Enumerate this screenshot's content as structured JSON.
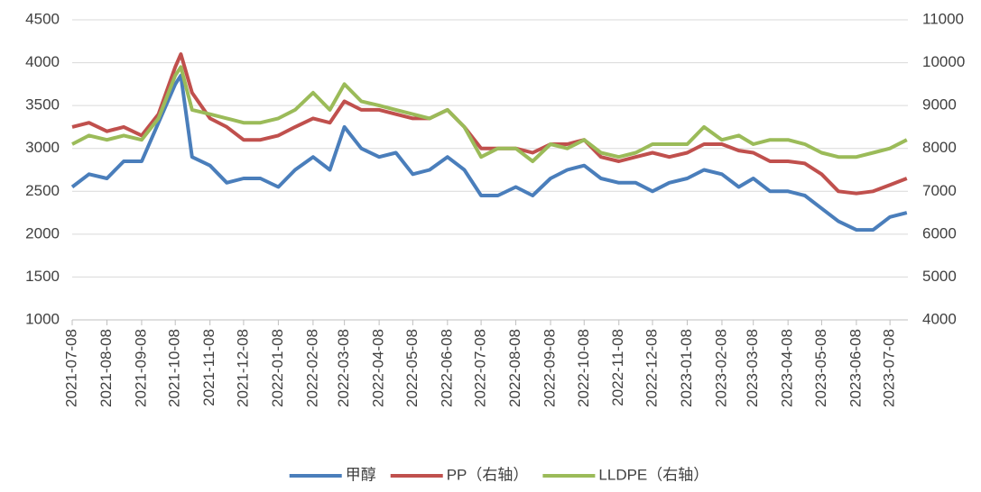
{
  "chart_data": {
    "type": "line",
    "x": [
      "2021-07-08",
      "2021-07-23",
      "2021-08-08",
      "2021-08-23",
      "2021-09-08",
      "2021-09-23",
      "2021-10-08",
      "2021-10-13",
      "2021-10-23",
      "2021-11-08",
      "2021-11-23",
      "2021-12-08",
      "2021-12-23",
      "2022-01-08",
      "2022-01-23",
      "2022-02-08",
      "2022-02-23",
      "2022-03-08",
      "2022-03-23",
      "2022-04-08",
      "2022-04-23",
      "2022-05-08",
      "2022-05-23",
      "2022-06-08",
      "2022-06-23",
      "2022-07-08",
      "2022-07-23",
      "2022-08-08",
      "2022-08-23",
      "2022-09-08",
      "2022-09-23",
      "2022-10-08",
      "2022-10-23",
      "2022-11-08",
      "2022-11-23",
      "2022-12-08",
      "2022-12-23",
      "2023-01-08",
      "2023-01-23",
      "2023-02-08",
      "2023-02-23",
      "2023-03-08",
      "2023-03-23",
      "2023-04-08",
      "2023-04-23",
      "2023-05-08",
      "2023-05-23",
      "2023-06-08",
      "2023-06-23",
      "2023-07-08",
      "2023-07-23"
    ],
    "series": [
      {
        "name": "甲醇",
        "color": "#4a7ebb",
        "axis": "y",
        "values": [
          2550,
          2700,
          2650,
          2850,
          2850,
          3300,
          3750,
          3850,
          2900,
          2800,
          2600,
          2650,
          2650,
          2550,
          2750,
          2900,
          2750,
          3250,
          3000,
          2900,
          2950,
          2700,
          2750,
          2900,
          2750,
          2450,
          2450,
          2550,
          2450,
          2650,
          2750,
          2800,
          2650,
          2600,
          2600,
          2500,
          2600,
          2650,
          2750,
          2700,
          2550,
          2650,
          2500,
          2500,
          2450,
          2300,
          2150,
          2050,
          2050,
          2200,
          2250
        ]
      },
      {
        "name": "PP（右轴）",
        "color": "#c0504d",
        "axis": "y2",
        "values": [
          8500,
          8600,
          8400,
          8500,
          8300,
          8800,
          9900,
          10200,
          9300,
          8700,
          8500,
          8200,
          8200,
          8300,
          8500,
          8700,
          8600,
          9100,
          8900,
          8900,
          8800,
          8700,
          8700,
          8900,
          8500,
          8000,
          8000,
          8000,
          7900,
          8100,
          8100,
          8200,
          7800,
          7700,
          7800,
          7900,
          7800,
          7900,
          8100,
          8100,
          7950,
          7900,
          7700,
          7700,
          7650,
          7400,
          7000,
          6950,
          7000,
          7150,
          7300
        ]
      },
      {
        "name": "LLDPE（右轴）",
        "color": "#9bbb59",
        "axis": "y2",
        "values": [
          8100,
          8300,
          8200,
          8300,
          8200,
          8700,
          9700,
          9900,
          8900,
          8800,
          8700,
          8600,
          8600,
          8700,
          8900,
          9300,
          8900,
          9500,
          9100,
          9000,
          8900,
          8800,
          8700,
          8900,
          8500,
          7800,
          8000,
          8000,
          7700,
          8100,
          8000,
          8200,
          7900,
          7800,
          7900,
          8100,
          8100,
          8100,
          8500,
          8200,
          8300,
          8100,
          8200,
          8200,
          8100,
          7900,
          7800,
          7800,
          7900,
          8000,
          8200
        ]
      }
    ],
    "xlim": [
      "2021-07-08",
      "2023-07-24"
    ],
    "xticks": [
      "2021-07-08",
      "2021-08-08",
      "2021-09-08",
      "2021-10-08",
      "2021-11-08",
      "2021-12-08",
      "2022-01-08",
      "2022-02-08",
      "2022-03-08",
      "2022-04-08",
      "2022-05-08",
      "2022-06-08",
      "2022-07-08",
      "2022-08-08",
      "2022-09-08",
      "2022-10-08",
      "2022-11-08",
      "2022-12-08",
      "2023-01-08",
      "2023-02-08",
      "2023-03-08",
      "2023-04-08",
      "2023-05-08",
      "2023-06-08",
      "2023-07-08"
    ],
    "ylim": [
      1000,
      4500
    ],
    "yticks": [
      1000,
      1500,
      2000,
      2500,
      3000,
      3500,
      4000,
      4500
    ],
    "y2lim": [
      4000,
      11000
    ],
    "y2ticks": [
      4000,
      5000,
      6000,
      7000,
      8000,
      9000,
      10000,
      11000
    ],
    "grid": true,
    "legend": "bottom"
  }
}
